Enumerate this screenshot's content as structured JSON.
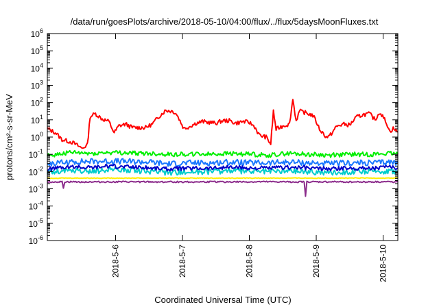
{
  "chart_data": {
    "type": "line",
    "title": "/data/run/goesPlots/archive/2018-05-10/04:00/flux/../flux/5daysMoonFluxes.txt",
    "xlabel": "Coordinated Universal Time (UTC)",
    "ylabel": "protons/cm²-s-sr-MeV",
    "y_scale": "log",
    "ylim_exponents": [
      -6,
      6
    ],
    "y_tick_base": "10",
    "y_tick_exponents": [
      "-6",
      "-5",
      "-4",
      "-3",
      "-2",
      "-1",
      "0",
      "1",
      "2",
      "3",
      "4",
      "5",
      "6"
    ],
    "x_range_days": [
      4.98,
      10.22
    ],
    "x_tick_labels": [
      "2018-5-6",
      "2018-5-7",
      "2018-5-8",
      "2018-5-9",
      "2018-5-10"
    ],
    "x_tick_days": [
      6,
      7,
      8,
      9,
      10
    ],
    "grid": false,
    "series": [
      {
        "color": "#ff0000",
        "points": [
          [
            4.98,
            0.48
          ],
          [
            5.1,
            0.26
          ],
          [
            5.2,
            -0.15
          ],
          [
            5.35,
            -0.3
          ],
          [
            5.5,
            -0.65
          ],
          [
            5.58,
            -0.45
          ],
          [
            5.62,
            1.2
          ],
          [
            5.7,
            1.35
          ],
          [
            5.8,
            1.05
          ],
          [
            5.9,
            0.9
          ],
          [
            5.98,
            0.25
          ],
          [
            6.05,
            0.65
          ],
          [
            6.15,
            0.75
          ],
          [
            6.25,
            0.55
          ],
          [
            6.35,
            0.55
          ],
          [
            6.45,
            0.55
          ],
          [
            6.55,
            0.75
          ],
          [
            6.65,
            1.2
          ],
          [
            6.75,
            1.55
          ],
          [
            6.85,
            1.5
          ],
          [
            6.9,
            1.4
          ],
          [
            6.95,
            1.05
          ],
          [
            7.02,
            0.5
          ],
          [
            7.1,
            0.6
          ],
          [
            7.2,
            0.8
          ],
          [
            7.3,
            0.9
          ],
          [
            7.4,
            0.85
          ],
          [
            7.5,
            0.8
          ],
          [
            7.6,
            0.95
          ],
          [
            7.7,
            0.95
          ],
          [
            7.8,
            0.8
          ],
          [
            7.9,
            0.9
          ],
          [
            8.0,
            0.85
          ],
          [
            8.08,
            0.6
          ],
          [
            8.15,
            0.1
          ],
          [
            8.25,
            0.0
          ],
          [
            8.32,
            -0.4
          ],
          [
            8.36,
            1.5
          ],
          [
            8.4,
            0.45
          ],
          [
            8.5,
            0.65
          ],
          [
            8.6,
            0.75
          ],
          [
            8.65,
            2.2
          ],
          [
            8.7,
            0.95
          ],
          [
            8.75,
            1.5
          ],
          [
            8.85,
            1.4
          ],
          [
            8.95,
            1.25
          ],
          [
            9.0,
            0.9
          ],
          [
            9.05,
            0.45
          ],
          [
            9.15,
            0.0
          ],
          [
            9.2,
            0.05
          ],
          [
            9.3,
            0.6
          ],
          [
            9.4,
            0.75
          ],
          [
            9.5,
            0.7
          ],
          [
            9.6,
            1.15
          ],
          [
            9.7,
            1.3
          ],
          [
            9.8,
            1.35
          ],
          [
            9.88,
            1.0
          ],
          [
            9.95,
            1.45
          ],
          [
            10.05,
            0.85
          ],
          [
            10.1,
            0.3
          ],
          [
            10.15,
            0.5
          ],
          [
            10.22,
            0.3
          ]
        ]
      },
      {
        "color": "#00ee00",
        "points": [
          [
            4.98,
            -1.1
          ],
          [
            5.3,
            -0.9
          ],
          [
            5.6,
            -0.95
          ],
          [
            5.9,
            -0.9
          ],
          [
            6.2,
            -0.92
          ],
          [
            6.5,
            -0.95
          ],
          [
            6.8,
            -1.0
          ],
          [
            7.1,
            -0.98
          ],
          [
            7.4,
            -1.0
          ],
          [
            7.7,
            -0.95
          ],
          [
            8.0,
            -1.0
          ],
          [
            8.3,
            -1.05
          ],
          [
            8.6,
            -0.95
          ],
          [
            8.9,
            -1.0
          ],
          [
            9.2,
            -1.05
          ],
          [
            9.5,
            -1.0
          ],
          [
            9.8,
            -1.0
          ],
          [
            10.1,
            -0.95
          ],
          [
            10.22,
            -1.0
          ]
        ]
      },
      {
        "color": "#1a78ff",
        "points": [
          [
            4.98,
            -1.55
          ],
          [
            5.3,
            -1.45
          ],
          [
            5.6,
            -1.4
          ],
          [
            5.9,
            -1.4
          ],
          [
            6.2,
            -1.42
          ],
          [
            6.5,
            -1.45
          ],
          [
            6.8,
            -1.55
          ],
          [
            7.1,
            -1.5
          ],
          [
            7.4,
            -1.5
          ],
          [
            7.7,
            -1.45
          ],
          [
            8.0,
            -1.5
          ],
          [
            8.3,
            -1.5
          ],
          [
            8.6,
            -1.45
          ],
          [
            8.9,
            -1.5
          ],
          [
            9.2,
            -1.55
          ],
          [
            9.5,
            -1.5
          ],
          [
            9.8,
            -1.5
          ],
          [
            10.1,
            -1.45
          ],
          [
            10.22,
            -1.5
          ]
        ]
      },
      {
        "color": "#00cccc",
        "points": [
          [
            4.98,
            -2.05
          ],
          [
            5.3,
            -1.95
          ],
          [
            5.6,
            -2.0
          ],
          [
            5.9,
            -1.9
          ],
          [
            6.2,
            -1.92
          ],
          [
            6.5,
            -2.0
          ],
          [
            6.8,
            -2.05
          ],
          [
            7.1,
            -2.0
          ],
          [
            7.4,
            -2.0
          ],
          [
            7.7,
            -1.95
          ],
          [
            8.0,
            -2.0
          ],
          [
            8.3,
            -2.0
          ],
          [
            8.6,
            -1.95
          ],
          [
            8.9,
            -2.0
          ],
          [
            9.2,
            -2.05
          ],
          [
            9.5,
            -2.0
          ],
          [
            9.8,
            -2.0
          ],
          [
            10.1,
            -1.95
          ],
          [
            10.22,
            -2.0
          ]
        ]
      },
      {
        "color": "#0000c8",
        "points": [
          [
            4.98,
            -1.85
          ],
          [
            5.3,
            -1.75
          ],
          [
            5.6,
            -1.75
          ],
          [
            5.9,
            -1.7
          ],
          [
            6.2,
            -1.72
          ],
          [
            6.5,
            -1.78
          ],
          [
            6.8,
            -1.85
          ],
          [
            7.1,
            -1.8
          ],
          [
            7.4,
            -1.8
          ],
          [
            7.7,
            -1.75
          ],
          [
            8.0,
            -1.8
          ],
          [
            8.3,
            -1.8
          ],
          [
            8.6,
            -1.75
          ],
          [
            8.9,
            -1.8
          ],
          [
            9.2,
            -1.85
          ],
          [
            9.5,
            -1.8
          ],
          [
            9.8,
            -1.8
          ],
          [
            10.1,
            -1.75
          ],
          [
            10.22,
            -1.8
          ]
        ]
      },
      {
        "color": "#ffee00",
        "points": [
          [
            4.98,
            -2.38
          ],
          [
            5.5,
            -2.38
          ],
          [
            6.0,
            -2.38
          ],
          [
            6.5,
            -2.38
          ],
          [
            7.0,
            -2.38
          ],
          [
            7.5,
            -2.38
          ],
          [
            8.0,
            -2.38
          ],
          [
            8.5,
            -2.38
          ],
          [
            9.0,
            -2.38
          ],
          [
            9.5,
            -2.38
          ],
          [
            10.0,
            -2.38
          ],
          [
            10.22,
            -2.38
          ]
        ]
      },
      {
        "color": "#8b2b8b",
        "points": [
          [
            4.98,
            -2.6
          ],
          [
            5.2,
            -2.6
          ],
          [
            5.22,
            -2.95
          ],
          [
            5.24,
            -2.6
          ],
          [
            5.6,
            -2.6
          ],
          [
            6.0,
            -2.6
          ],
          [
            6.5,
            -2.6
          ],
          [
            7.0,
            -2.6
          ],
          [
            7.5,
            -2.6
          ],
          [
            8.0,
            -2.6
          ],
          [
            8.5,
            -2.6
          ],
          [
            8.82,
            -2.6
          ],
          [
            8.84,
            -3.45
          ],
          [
            8.86,
            -2.6
          ],
          [
            9.2,
            -2.6
          ],
          [
            9.5,
            -2.6
          ],
          [
            9.8,
            -2.6
          ],
          [
            10.22,
            -2.6
          ]
        ]
      }
    ]
  }
}
